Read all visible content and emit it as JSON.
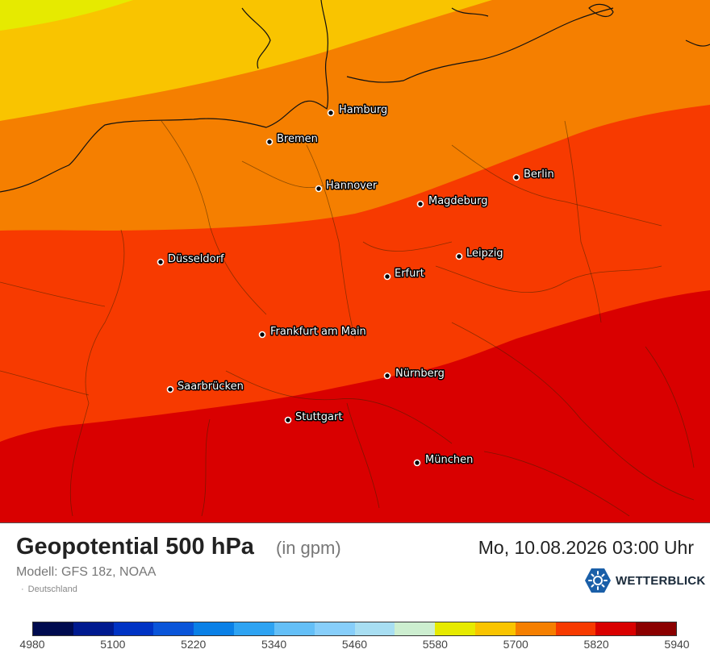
{
  "header": {
    "title": "Geopotential 500 hPa",
    "unit": "(in gpm)",
    "datetime": "Mo, 10.08.2026 03:00 Uhr",
    "model": "Modell: GFS 18z, NOAA",
    "region": "Deutschland",
    "region_separator": "·"
  },
  "brand": {
    "name": "WETTERBLICK",
    "icon": "weather-logo-icon",
    "color": "#1a5fa8"
  },
  "map": {
    "cities": [
      {
        "name": "Hamburg"
      },
      {
        "name": "Bremen"
      },
      {
        "name": "Berlin"
      },
      {
        "name": "Hannover"
      },
      {
        "name": "Magdeburg"
      },
      {
        "name": "Düsseldorf"
      },
      {
        "name": "Leipzig"
      },
      {
        "name": "Erfurt"
      },
      {
        "name": "Frankfurt am Main"
      },
      {
        "name": "Nürnberg"
      },
      {
        "name": "Saarbrücken"
      },
      {
        "name": "Stuttgart"
      },
      {
        "name": "München"
      }
    ],
    "visible_bands": [
      {
        "range": "5640–5700",
        "color": "#f9c400"
      },
      {
        "range": "5700–5760",
        "color": "#f57f00"
      },
      {
        "range": "5760–5820",
        "color": "#f73a00"
      },
      {
        "range": "5820–5880",
        "color": "#d90000"
      }
    ]
  },
  "legend": {
    "ticks": [
      "4980",
      "5100",
      "5220",
      "5340",
      "5460",
      "5580",
      "5700",
      "5820",
      "5940"
    ],
    "colors": [
      "#000b4f",
      "#001a8f",
      "#0033c4",
      "#0a55d9",
      "#0a80e6",
      "#2ea3f2",
      "#64bff7",
      "#87cefa",
      "#a8def2",
      "#cdeed0",
      "#e6ea00",
      "#f9c400",
      "#f57f00",
      "#f73a00",
      "#d90000",
      "#8b0000"
    ]
  }
}
